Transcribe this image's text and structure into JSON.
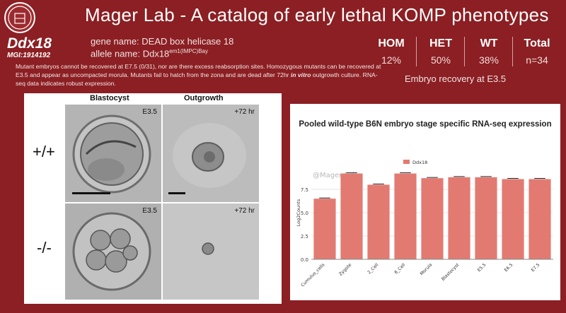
{
  "header": {
    "title": "Mager Lab - A catalog of early lethal KOMP phenotypes"
  },
  "gene": {
    "symbol": "Ddx18",
    "mgi": "MGI:1914192",
    "gene_name": "gene name: DEAD box helicase 18",
    "allele_prefix": "allele name: Ddx18",
    "allele_sup": "em1(IMPC)Bay",
    "description_before": "Mutant embryos cannot be recovered at E7.5 (0/31), nor are there excess reabsorption sites. Homozygous mutants can be recovered at E3.5 and appear as uncompacted morula. Mutants fail to hatch from the zona and are dead after 72hr ",
    "description_emph": "in vitro",
    "description_after": " outgrowth culture. RNA-seq data indicates robust expression."
  },
  "stats": {
    "columns": [
      {
        "label": "HOM",
        "value": "12%"
      },
      {
        "label": "HET",
        "value": "50%"
      },
      {
        "label": "WT",
        "value": "38%"
      },
      {
        "label": "Total",
        "value": "n=34"
      }
    ],
    "caption": "Embryo recovery at E3.5"
  },
  "images": {
    "col_blastocyst": "Blastocyst",
    "col_outgrowth": "Outgrowth",
    "row_wt": "+/+",
    "row_mut": "-/-",
    "tag_e35": "E3.5",
    "tag_72": "+72 hr"
  },
  "colors": {
    "background": "#8b1f23",
    "bar": "#e27a72"
  },
  "chart_data": {
    "type": "bar",
    "title": "Pooled wild-type B6N embryo stage specific RNA-seq expression",
    "watermark": "@Mager Lab",
    "ylabel": "Log2Counts",
    "ylim": [
      0,
      10
    ],
    "yticks": [
      "0.0",
      "2.5",
      "5.0",
      "7.5"
    ],
    "legend": "top-center",
    "grid": true,
    "categories": [
      "Cumulus_cells",
      "Zygote",
      "2_Cell",
      "8_Cell",
      "Morula",
      "Blastocyst",
      "E5.5",
      "E6.5",
      "E7.5"
    ],
    "series": [
      {
        "name": "Ddx18",
        "values": [
          6.5,
          9.2,
          8.0,
          9.2,
          8.7,
          8.8,
          8.8,
          8.6,
          8.6
        ]
      }
    ]
  }
}
